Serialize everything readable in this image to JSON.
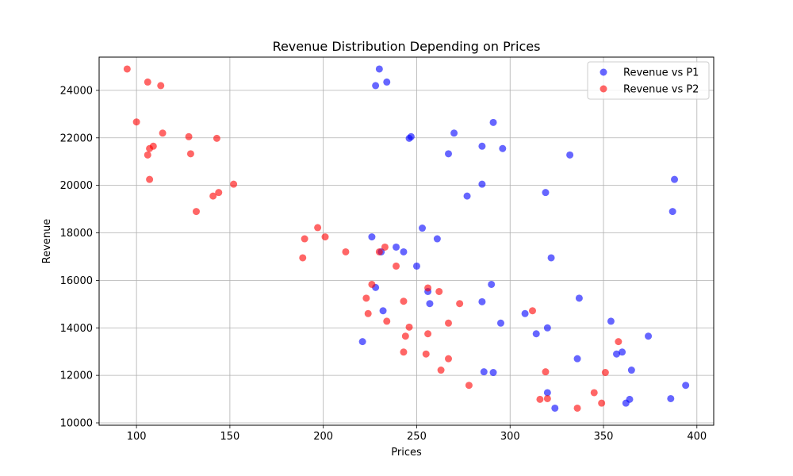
{
  "chart_data": {
    "type": "scatter",
    "title": "Revenue Distribution Depending on Prices",
    "xlabel": "Prices",
    "ylabel": "Revenue",
    "xlim": [
      80,
      409
    ],
    "ylim": [
      9900,
      25400
    ],
    "x_ticks": [
      100,
      150,
      200,
      250,
      300,
      350,
      400
    ],
    "y_ticks": [
      10000,
      12000,
      14000,
      16000,
      18000,
      20000,
      22000,
      24000
    ],
    "grid": true,
    "legend_position": "top-right",
    "series": [
      {
        "name": "Revenue vs P1",
        "color": "#0000ff",
        "points": [
          {
            "x": 230,
            "y": 24900
          },
          {
            "x": 228,
            "y": 24200
          },
          {
            "x": 234,
            "y": 24350
          },
          {
            "x": 291,
            "y": 22650
          },
          {
            "x": 270,
            "y": 22200
          },
          {
            "x": 247,
            "y": 22050
          },
          {
            "x": 246,
            "y": 21980
          },
          {
            "x": 285,
            "y": 21650
          },
          {
            "x": 296,
            "y": 21550
          },
          {
            "x": 267,
            "y": 21330
          },
          {
            "x": 332,
            "y": 21280
          },
          {
            "x": 388,
            "y": 20250
          },
          {
            "x": 285,
            "y": 20050
          },
          {
            "x": 319,
            "y": 19700
          },
          {
            "x": 277,
            "y": 19550
          },
          {
            "x": 387,
            "y": 18900
          },
          {
            "x": 253,
            "y": 18200
          },
          {
            "x": 226,
            "y": 17830
          },
          {
            "x": 261,
            "y": 17750
          },
          {
            "x": 239,
            "y": 17400
          },
          {
            "x": 231,
            "y": 17200
          },
          {
            "x": 243,
            "y": 17200
          },
          {
            "x": 322,
            "y": 16950
          },
          {
            "x": 250,
            "y": 16600
          },
          {
            "x": 290,
            "y": 15830
          },
          {
            "x": 228,
            "y": 15700
          },
          {
            "x": 256,
            "y": 15530
          },
          {
            "x": 337,
            "y": 15250
          },
          {
            "x": 285,
            "y": 15100
          },
          {
            "x": 257,
            "y": 15020
          },
          {
            "x": 232,
            "y": 14720
          },
          {
            "x": 308,
            "y": 14600
          },
          {
            "x": 354,
            "y": 14280
          },
          {
            "x": 295,
            "y": 14200
          },
          {
            "x": 320,
            "y": 14000
          },
          {
            "x": 314,
            "y": 13750
          },
          {
            "x": 374,
            "y": 13650
          },
          {
            "x": 221,
            "y": 13420
          },
          {
            "x": 360,
            "y": 12980
          },
          {
            "x": 357,
            "y": 12900
          },
          {
            "x": 336,
            "y": 12700
          },
          {
            "x": 365,
            "y": 12220
          },
          {
            "x": 286,
            "y": 12150
          },
          {
            "x": 291,
            "y": 12120
          },
          {
            "x": 394,
            "y": 11580
          },
          {
            "x": 320,
            "y": 11270
          },
          {
            "x": 364,
            "y": 10990
          },
          {
            "x": 386,
            "y": 11020
          },
          {
            "x": 362,
            "y": 10830
          },
          {
            "x": 324,
            "y": 10620
          }
        ]
      },
      {
        "name": "Revenue vs P2",
        "color": "#ff0000",
        "points": [
          {
            "x": 95,
            "y": 24900
          },
          {
            "x": 106,
            "y": 24350
          },
          {
            "x": 113,
            "y": 24200
          },
          {
            "x": 100,
            "y": 22670
          },
          {
            "x": 114,
            "y": 22200
          },
          {
            "x": 128,
            "y": 22050
          },
          {
            "x": 143,
            "y": 21980
          },
          {
            "x": 109,
            "y": 21650
          },
          {
            "x": 107,
            "y": 21550
          },
          {
            "x": 129,
            "y": 21330
          },
          {
            "x": 106,
            "y": 21280
          },
          {
            "x": 107,
            "y": 20250
          },
          {
            "x": 152,
            "y": 20050
          },
          {
            "x": 144,
            "y": 19700
          },
          {
            "x": 141,
            "y": 19550
          },
          {
            "x": 132,
            "y": 18900
          },
          {
            "x": 197,
            "y": 18220
          },
          {
            "x": 201,
            "y": 17830
          },
          {
            "x": 190,
            "y": 17750
          },
          {
            "x": 233,
            "y": 17400
          },
          {
            "x": 212,
            "y": 17200
          },
          {
            "x": 230,
            "y": 17200
          },
          {
            "x": 189,
            "y": 16950
          },
          {
            "x": 239,
            "y": 16600
          },
          {
            "x": 226,
            "y": 15830
          },
          {
            "x": 256,
            "y": 15680
          },
          {
            "x": 262,
            "y": 15530
          },
          {
            "x": 223,
            "y": 15250
          },
          {
            "x": 243,
            "y": 15120
          },
          {
            "x": 273,
            "y": 15020
          },
          {
            "x": 312,
            "y": 14720
          },
          {
            "x": 224,
            "y": 14600
          },
          {
            "x": 234,
            "y": 14280
          },
          {
            "x": 267,
            "y": 14200
          },
          {
            "x": 246,
            "y": 14030
          },
          {
            "x": 256,
            "y": 13750
          },
          {
            "x": 244,
            "y": 13650
          },
          {
            "x": 358,
            "y": 13420
          },
          {
            "x": 243,
            "y": 12980
          },
          {
            "x": 255,
            "y": 12900
          },
          {
            "x": 267,
            "y": 12700
          },
          {
            "x": 263,
            "y": 12220
          },
          {
            "x": 319,
            "y": 12150
          },
          {
            "x": 351,
            "y": 12120
          },
          {
            "x": 278,
            "y": 11580
          },
          {
            "x": 345,
            "y": 11270
          },
          {
            "x": 316,
            "y": 10990
          },
          {
            "x": 320,
            "y": 11020
          },
          {
            "x": 349,
            "y": 10830
          },
          {
            "x": 336,
            "y": 10620
          }
        ]
      }
    ]
  }
}
